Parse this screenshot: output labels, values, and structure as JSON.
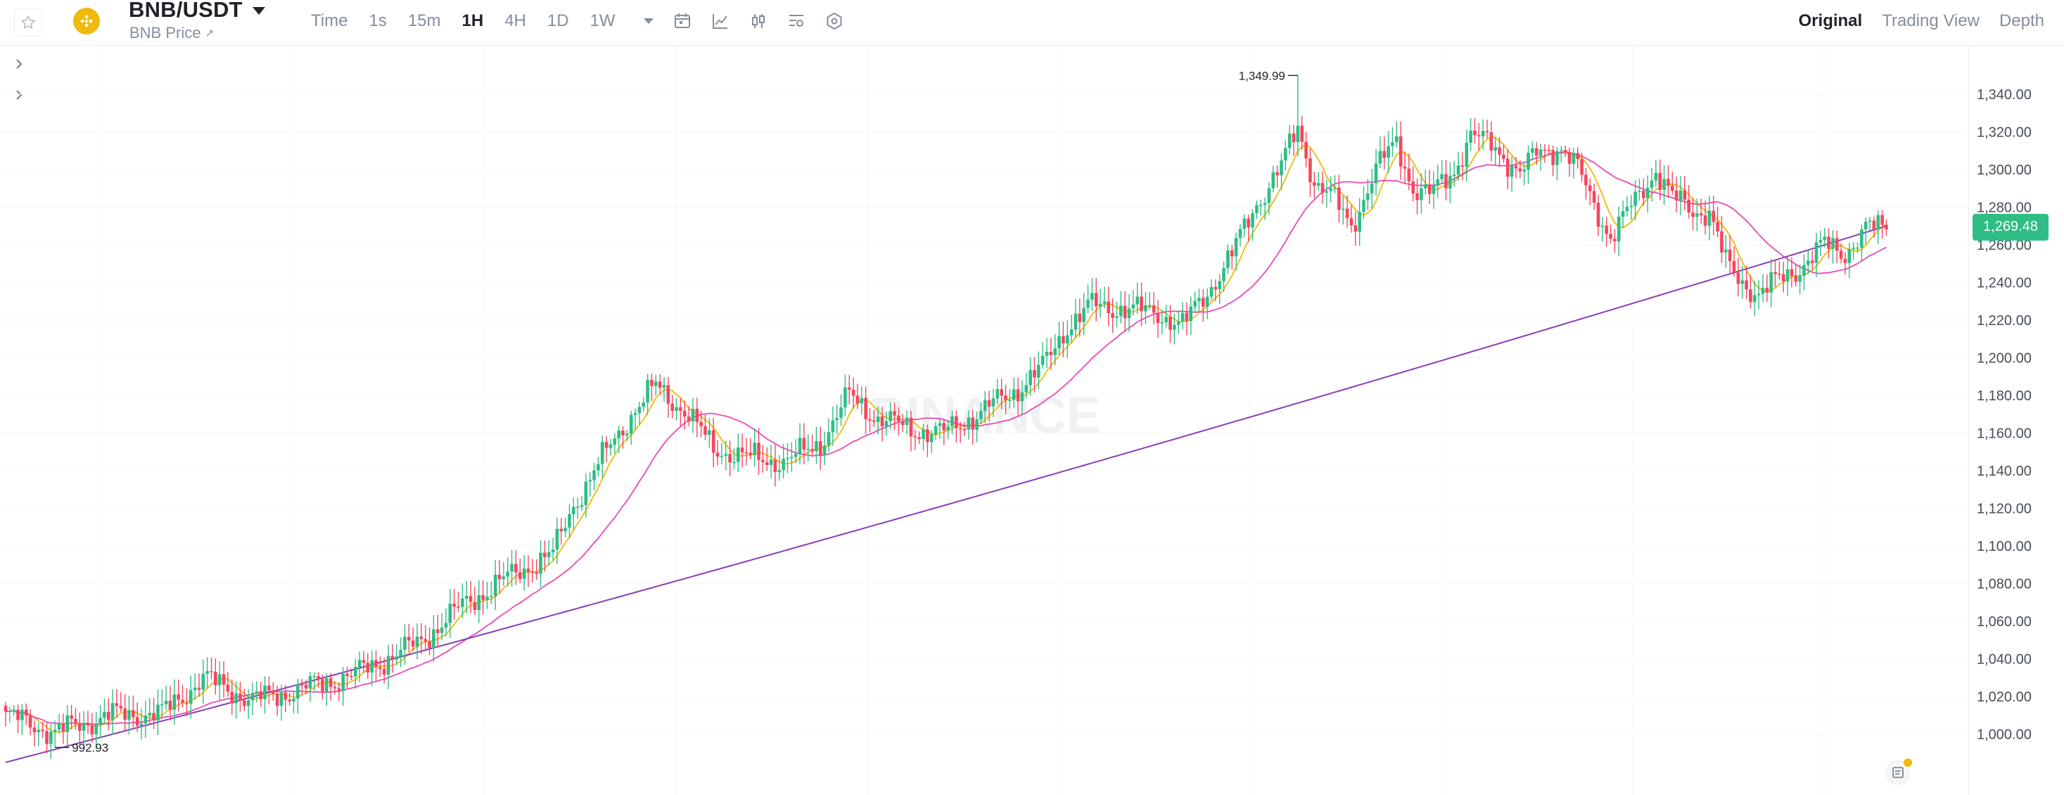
{
  "header": {
    "pair": "BNB/USDT",
    "subtitle": "BNB Price",
    "subtitle_icon": "external-arrow-icon",
    "star_icon": "star-icon",
    "logo_icon": "bnb-logo-icon"
  },
  "intervals": {
    "time_label": "Time",
    "items": [
      "1s",
      "15m",
      "1H",
      "4H",
      "1D",
      "1W"
    ],
    "active": "1H",
    "more_icon": "chevron-down-icon"
  },
  "tools": [
    "calendar-icon",
    "indicator-icon",
    "candle-type-icon",
    "settings-list-icon",
    "hexagon-settings-icon"
  ],
  "views": {
    "items": [
      "Original",
      "Trading View",
      "Depth"
    ],
    "active": "Original"
  },
  "chart_data": {
    "type": "candlestick",
    "symbol": "BNB/USDT",
    "interval": "1H",
    "y_axis_ticks": [
      "1,340.00",
      "1,320.00",
      "1,300.00",
      "1,280.00",
      "1,260.00",
      "1,240.00",
      "1,220.00",
      "1,200.00",
      "1,180.00",
      "1,160.00",
      "1,140.00",
      "1,120.00",
      "1,100.00",
      "1,080.00",
      "1,060.00",
      "1,040.00",
      "1,020.00",
      "1,000.00"
    ],
    "ylim": [
      990,
      1360
    ],
    "last_price": "1,269.48",
    "high_marker": "1,349.99",
    "low_marker": "992.93",
    "watermark": "BINANCE",
    "colors": {
      "up": "#2ebd85",
      "down": "#f6465d",
      "ma_fast": "#f0b90b",
      "ma_mid": "#e84bb7",
      "ma_slow": "#8b3db8",
      "last_tag": "#2ebd85"
    },
    "key_closes": [
      [
        0,
        1010
      ],
      [
        12,
        1001
      ],
      [
        25,
        1010
      ],
      [
        38,
        1011
      ],
      [
        48,
        1030
      ],
      [
        60,
        1018
      ],
      [
        72,
        1024
      ],
      [
        85,
        1032
      ],
      [
        100,
        1048
      ],
      [
        112,
        1070
      ],
      [
        125,
        1087
      ],
      [
        133,
        1096
      ],
      [
        138,
        1122
      ],
      [
        146,
        1150
      ],
      [
        152,
        1170
      ],
      [
        158,
        1185
      ],
      [
        165,
        1172
      ],
      [
        172,
        1152
      ],
      [
        180,
        1147
      ],
      [
        190,
        1145
      ],
      [
        198,
        1155
      ],
      [
        205,
        1180
      ],
      [
        212,
        1168
      ],
      [
        220,
        1162
      ],
      [
        228,
        1160
      ],
      [
        236,
        1170
      ],
      [
        245,
        1182
      ],
      [
        252,
        1195
      ],
      [
        258,
        1217
      ],
      [
        264,
        1228
      ],
      [
        272,
        1226
      ],
      [
        280,
        1224
      ],
      [
        286,
        1217
      ],
      [
        292,
        1235
      ],
      [
        298,
        1255
      ],
      [
        304,
        1282
      ],
      [
        310,
        1302
      ],
      [
        314,
        1322
      ],
      [
        318,
        1294
      ],
      [
        322,
        1286
      ],
      [
        327,
        1270
      ],
      [
        333,
        1300
      ],
      [
        338,
        1315
      ],
      [
        342,
        1290
      ],
      [
        346,
        1286
      ],
      [
        352,
        1300
      ],
      [
        356,
        1318
      ],
      [
        362,
        1312
      ],
      [
        368,
        1298
      ],
      [
        373,
        1310
      ],
      [
        378,
        1312
      ],
      [
        382,
        1300
      ],
      [
        385,
        1286
      ],
      [
        390,
        1264
      ],
      [
        395,
        1280
      ],
      [
        401,
        1300
      ],
      [
        405,
        1285
      ],
      [
        410,
        1278
      ],
      [
        414,
        1278
      ],
      [
        418,
        1250
      ],
      [
        421,
        1242
      ],
      [
        426,
        1234
      ],
      [
        430,
        1240
      ],
      [
        436,
        1248
      ],
      [
        442,
        1260
      ],
      [
        447,
        1256
      ],
      [
        452,
        1268
      ],
      [
        457,
        1270
      ]
    ],
    "ma_slow_ends": [
      [
        0,
        985
      ],
      [
        457,
        1270
      ]
    ]
  }
}
